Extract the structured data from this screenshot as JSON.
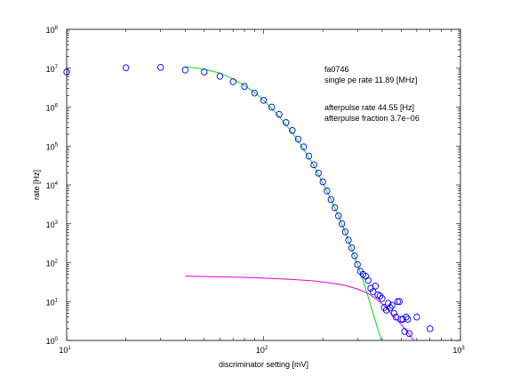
{
  "chart_data": {
    "type": "scatter",
    "title": "",
    "xlabel": "discriminator setting [mV]",
    "ylabel": "rate [Hz]",
    "xscale": "log",
    "yscale": "log",
    "xlim": [
      10,
      1000
    ],
    "ylim": [
      1,
      100000000
    ],
    "grid": false,
    "x_ticks": [
      {
        "base": "10",
        "exp": "1",
        "value": 10
      },
      {
        "base": "10",
        "exp": "2",
        "value": 100
      },
      {
        "base": "10",
        "exp": "3",
        "value": 1000
      }
    ],
    "y_ticks": [
      {
        "base": "10",
        "exp": "0",
        "value": 1
      },
      {
        "base": "10",
        "exp": "1",
        "value": 10
      },
      {
        "base": "10",
        "exp": "2",
        "value": 100
      },
      {
        "base": "10",
        "exp": "3",
        "value": 1000
      },
      {
        "base": "10",
        "exp": "4",
        "value": 10000
      },
      {
        "base": "10",
        "exp": "5",
        "value": 100000
      },
      {
        "base": "10",
        "exp": "6",
        "value": 1000000
      },
      {
        "base": "10",
        "exp": "7",
        "value": 10000000
      },
      {
        "base": "10",
        "exp": "8",
        "value": 100000000
      }
    ],
    "annotations": [
      "fa0746",
      "single pe rate 11.89 [MHz]",
      "afterpulse rate 44.55 [Hz]",
      "afterpulse fraction 3.7e−06"
    ],
    "series": [
      {
        "marker": "circle",
        "color": "#0000ff",
        "points": [
          [
            10,
            8000000
          ],
          [
            20,
            10300000
          ],
          [
            30,
            10500000
          ],
          [
            40,
            9000000
          ],
          [
            50,
            8000000
          ],
          [
            60,
            6200000
          ],
          [
            70,
            4500000
          ],
          [
            80,
            3400000
          ],
          [
            90,
            2300000
          ],
          [
            100,
            1500000
          ],
          [
            110,
            1000000
          ],
          [
            120,
            650000
          ],
          [
            130,
            400000
          ],
          [
            140,
            250000
          ],
          [
            150,
            150000
          ],
          [
            160,
            95000
          ],
          [
            170,
            55000
          ],
          [
            180,
            33000
          ],
          [
            190,
            20000
          ],
          [
            200,
            12000
          ],
          [
            210,
            7000
          ],
          [
            220,
            4200
          ],
          [
            230,
            2600
          ],
          [
            240,
            1600
          ],
          [
            250,
            1000
          ],
          [
            260,
            620
          ],
          [
            270,
            380
          ],
          [
            280,
            240
          ],
          [
            290,
            150
          ],
          [
            300,
            90
          ],
          [
            310,
            60
          ],
          [
            320,
            50
          ],
          [
            330,
            45
          ],
          [
            340,
            35
          ],
          [
            350,
            22
          ],
          [
            360,
            18
          ],
          [
            370,
            25
          ],
          [
            380,
            15
          ],
          [
            390,
            14
          ],
          [
            400,
            12
          ],
          [
            410,
            7
          ],
          [
            420,
            6
          ],
          [
            430,
            9
          ],
          [
            440,
            7
          ],
          [
            450,
            8
          ],
          [
            460,
            5
          ],
          [
            470,
            4
          ],
          [
            480,
            10
          ],
          [
            490,
            10
          ],
          [
            500,
            3.5
          ],
          [
            510,
            3.5
          ],
          [
            520,
            1.7
          ],
          [
            530,
            4
          ],
          [
            540,
            3.5
          ],
          [
            550,
            1.5
          ],
          [
            600,
            4
          ],
          [
            700,
            2
          ]
        ]
      },
      {
        "type": "line",
        "color": "#00dd00",
        "points": [
          [
            40,
            11000000
          ],
          [
            50,
            9500000
          ],
          [
            60,
            7500000
          ],
          [
            70,
            5300000
          ],
          [
            80,
            3600000
          ],
          [
            90,
            2400000
          ],
          [
            100,
            1500000
          ],
          [
            120,
            580000
          ],
          [
            140,
            220000
          ],
          [
            160,
            82000
          ],
          [
            180,
            31000
          ],
          [
            200,
            11000
          ],
          [
            220,
            4200
          ],
          [
            240,
            1600
          ],
          [
            260,
            600
          ],
          [
            280,
            230
          ],
          [
            300,
            90
          ],
          [
            320,
            35
          ],
          [
            340,
            13
          ],
          [
            360,
            5
          ],
          [
            380,
            2
          ],
          [
            400,
            0.9
          ]
        ]
      },
      {
        "type": "line",
        "color": "#dd00dd",
        "points": [
          [
            40,
            45
          ],
          [
            60,
            43
          ],
          [
            80,
            42
          ],
          [
            100,
            40
          ],
          [
            140,
            37
          ],
          [
            180,
            34
          ],
          [
            220,
            30
          ],
          [
            260,
            26
          ],
          [
            300,
            21
          ],
          [
            340,
            16
          ],
          [
            380,
            11
          ],
          [
            420,
            7
          ],
          [
            460,
            4
          ],
          [
            500,
            2.6
          ],
          [
            540,
            1.6
          ],
          [
            580,
            1.0
          ]
        ]
      }
    ]
  }
}
